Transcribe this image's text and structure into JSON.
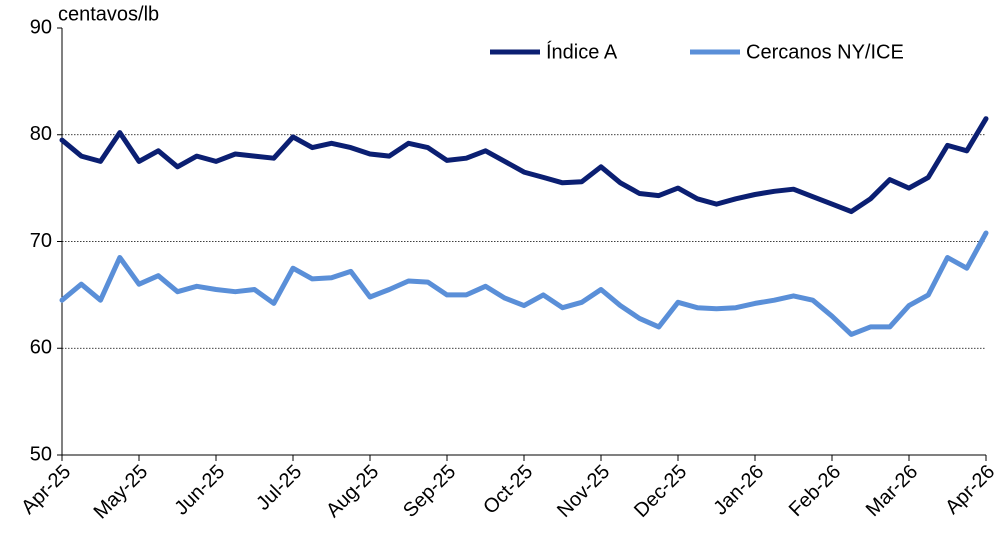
{
  "chart_data": {
    "type": "line",
    "y_label": "centavos/lb",
    "categories": [
      "Apr-25",
      null,
      null,
      null,
      "May-25",
      null,
      null,
      null,
      "Jun-25",
      null,
      null,
      null,
      "Jul-25",
      null,
      null,
      null,
      "Aug-25",
      null,
      null,
      null,
      "Sep-25",
      null,
      null,
      null,
      "Oct-25",
      null,
      null,
      null,
      "Nov-25",
      null,
      null,
      null,
      "Dec-25",
      null,
      null,
      null,
      "Jan-26",
      null,
      null,
      null,
      "Feb-26",
      null,
      null,
      null,
      "Mar-26",
      null,
      null,
      null,
      "Apr-26"
    ],
    "series": [
      {
        "name": "Índice A",
        "color": "#0b1f72",
        "values": [
          79.5,
          78,
          77.5,
          80.2,
          77.5,
          78.5,
          77,
          78,
          77.5,
          78.2,
          78,
          77.8,
          79.8,
          78.8,
          79.2,
          78.8,
          78.2,
          78,
          79.2,
          78.8,
          77.6,
          77.8,
          78.5,
          77.5,
          76.5,
          76,
          75.5,
          75.6,
          77,
          75.5,
          74.5,
          74.3,
          75,
          74,
          73.5,
          74,
          74.4,
          74.7,
          74.9,
          74.2,
          73.5,
          72.8,
          74,
          75.8,
          75,
          76,
          79,
          78.5,
          81.5
        ]
      },
      {
        "name": "Cercanos NY/ICE",
        "color": "#5a8fd8",
        "values": [
          64.5,
          66,
          64.5,
          68.5,
          66,
          66.8,
          65.3,
          65.8,
          65.5,
          65.3,
          65.5,
          64.2,
          67.5,
          66.5,
          66.6,
          67.2,
          64.8,
          65.5,
          66.3,
          66.2,
          65,
          65,
          65.8,
          64.7,
          64,
          65,
          63.8,
          64.3,
          65.5,
          64,
          62.8,
          62,
          64.3,
          63.8,
          63.7,
          63.8,
          64.2,
          64.5,
          64.9,
          64.5,
          63,
          61.3,
          62,
          62,
          64,
          65,
          68.5,
          67.5,
          70.8
        ]
      }
    ],
    "ylim": [
      50,
      90
    ],
    "yticks": [
      50,
      60,
      70,
      80,
      90
    ],
    "grid": true,
    "legend": "top-right"
  }
}
